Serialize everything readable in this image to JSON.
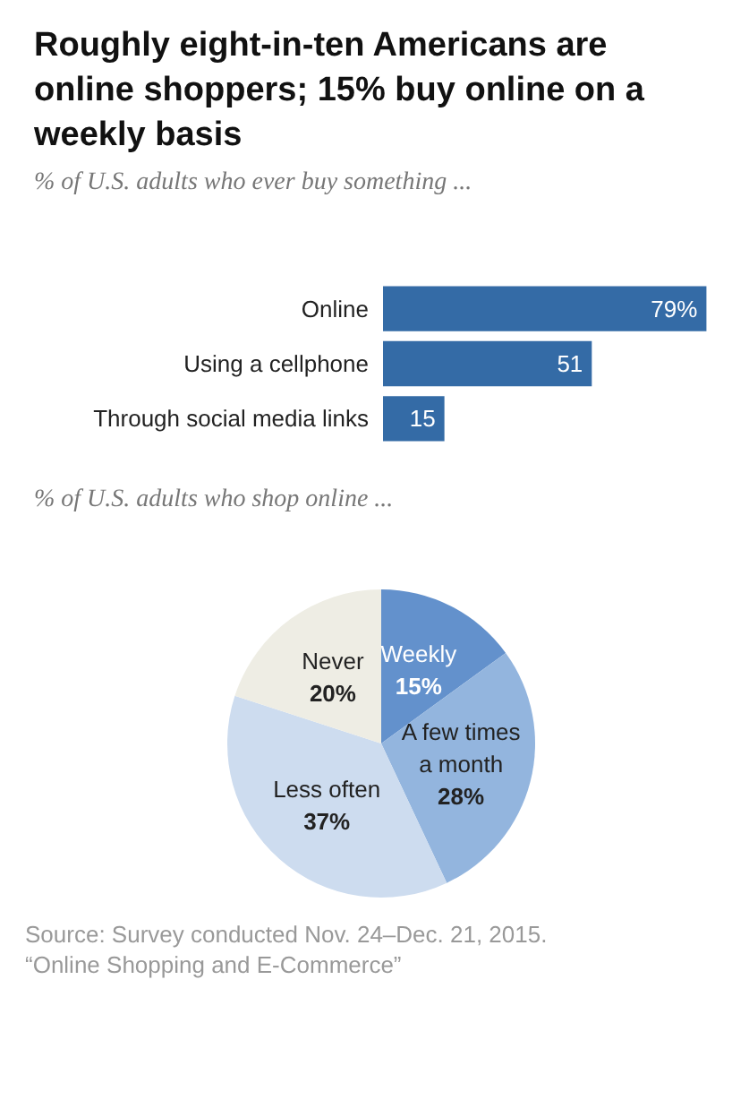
{
  "chart_data": [
    {
      "type": "bar",
      "title": "Roughly eight-in-ten Americans are online shoppers; 15% buy online on a weekly basis",
      "subtitle": "% of U.S. adults who ever buy something ...",
      "orientation": "horizontal",
      "categories": [
        "Online",
        "Using a cellphone",
        "Through social media links"
      ],
      "values": [
        79,
        51,
        15
      ],
      "value_labels": [
        "79%",
        "51",
        "15"
      ],
      "color": "#346ba6"
    },
    {
      "type": "pie",
      "subtitle": "% of U.S. adults who shop online ...",
      "categories": [
        "Weekly",
        "A few times a month",
        "Less often",
        "Never"
      ],
      "values": [
        15,
        28,
        37,
        20
      ],
      "colors": [
        "#6391cc",
        "#93b5de",
        "#cddcef",
        "#eeede4"
      ],
      "value_labels": [
        "15%",
        "28%",
        "37%",
        "20%"
      ],
      "annotations": [
        "Source: Survey conducted Nov. 24–Dec. 21, 2015.",
        "“Online Shopping and E-Commerce”"
      ]
    }
  ]
}
